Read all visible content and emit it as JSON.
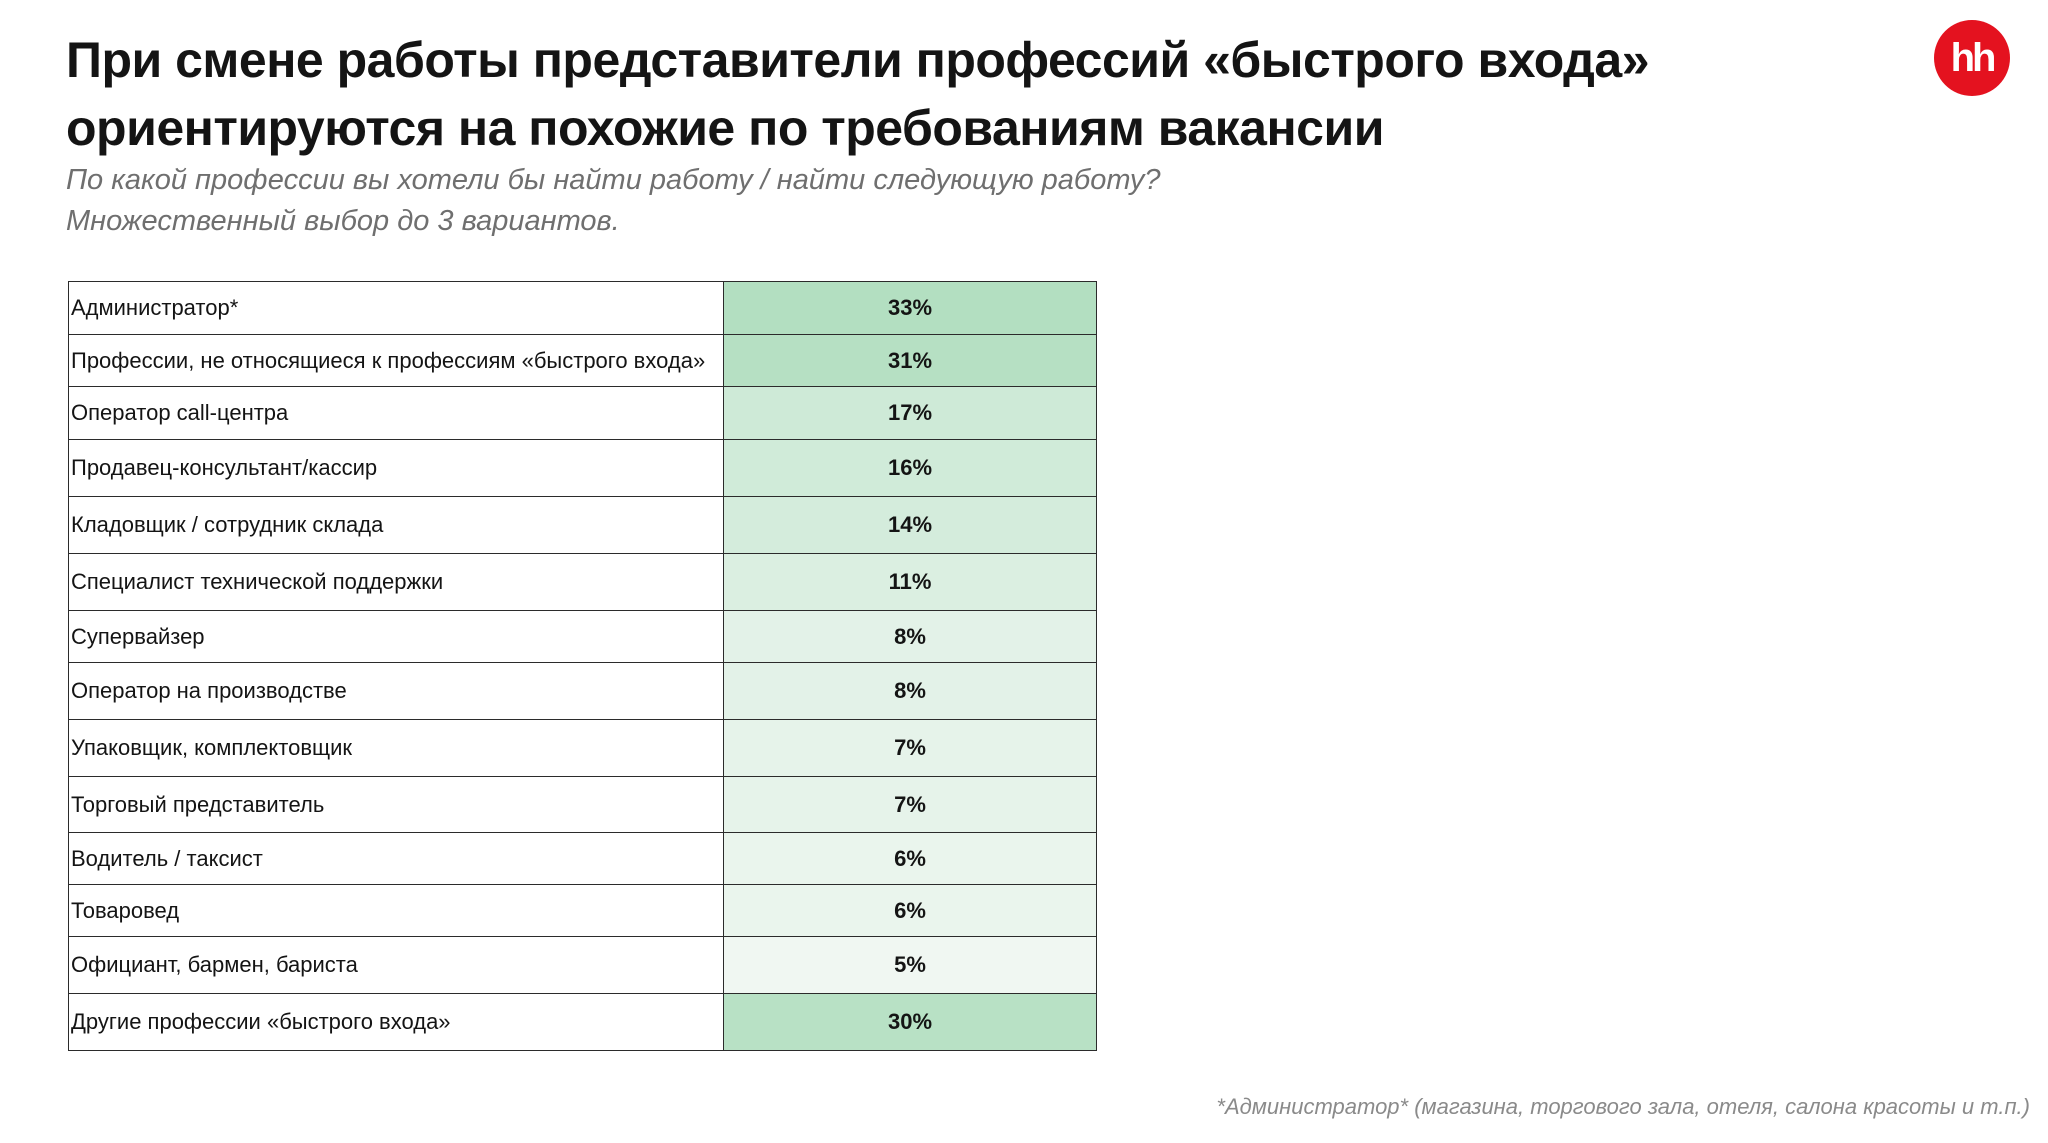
{
  "header": {
    "title_lines": [
      "При смене работы представители профессий «быстрого входа»",
      "ориентируются на похожие по требованиям вакансии"
    ],
    "subtitle_lines": [
      "По какой профессии вы хотели бы найти работу / найти следующую работу?",
      "Множественный выбор до 3 вариантов."
    ]
  },
  "logo": {
    "text": "hh",
    "color": "#e4121f"
  },
  "colors": {
    "heat_high": "#b3dfc1",
    "heat_low": "#f0f7f2",
    "border": "#2b2b2b"
  },
  "chart_data": {
    "type": "table",
    "title": "",
    "value_unit": "%",
    "rows": [
      {
        "label": "Администратор*",
        "value": 33,
        "display": "33%"
      },
      {
        "label": "Профессии, не относящиеся к профессиям «быстрого входа»",
        "value": 31,
        "display": "31%"
      },
      {
        "label": "Оператор call-центра",
        "value": 17,
        "display": "17%"
      },
      {
        "label": "Продавец-консультант/кассир",
        "value": 16,
        "display": "16%"
      },
      {
        "label": "Кладовщик / сотрудник склада",
        "value": 14,
        "display": "14%"
      },
      {
        "label": "Специалист технической поддержки",
        "value": 11,
        "display": "11%"
      },
      {
        "label": "Супервайзер",
        "value": 8,
        "display": "8%"
      },
      {
        "label": "Оператор на производстве",
        "value": 8,
        "display": "8%"
      },
      {
        "label": "Упаковщик, комплектовщик",
        "value": 7,
        "display": "7%"
      },
      {
        "label": "Торговый представитель",
        "value": 7,
        "display": "7%"
      },
      {
        "label": "Водитель / таксист",
        "value": 6,
        "display": "6%"
      },
      {
        "label": "Товаровед",
        "value": 6,
        "display": "6%"
      },
      {
        "label": "Официант, бармен, бариста",
        "value": 5,
        "display": "5%"
      },
      {
        "label": "Другие профессии «быстрого входа»",
        "value": 30,
        "display": "30%"
      }
    ]
  },
  "footnote": "*Администратор* (магазина, торгового зала, отеля, салона красоты и т.п.)"
}
